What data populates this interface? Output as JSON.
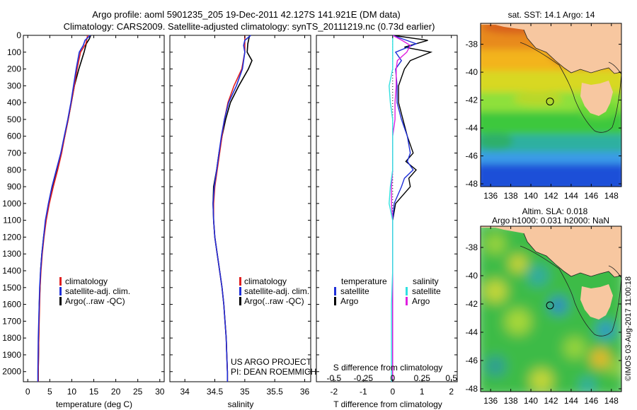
{
  "header": {
    "line1": "Argo profile: aoml 5901235_205 19-Dec-2011 42.127S 141.921E (DM data)",
    "line2": "Climatology: CARS2009. Satellite-adjusted climatology: synTS_20111219.nc (0.73d earlier)"
  },
  "colors": {
    "climatology": "#e02020",
    "satellite": "#1f2fd8",
    "argo": "#000000",
    "cyan": "#30e0e0",
    "magenta": "#e020e0",
    "land": "#f7c7a0"
  },
  "depth_ticks": [
    0,
    100,
    200,
    300,
    400,
    500,
    600,
    700,
    800,
    900,
    1000,
    1100,
    1200,
    1300,
    1400,
    1500,
    1600,
    1700,
    1800,
    1900,
    2000
  ],
  "temp_panel": {
    "xlabel": "temperature (deg C)",
    "xlim": [
      -1,
      31
    ],
    "xticks": [
      0,
      5,
      10,
      15,
      20,
      25,
      30
    ],
    "legend": [
      "climatology",
      "satellite-adj. clim.",
      "Argo(..raw -QC)"
    ],
    "series": {
      "climatology": {
        "depth": [
          0,
          50,
          100,
          200,
          300,
          400,
          500,
          600,
          700,
          800,
          900,
          1000,
          1100,
          1200,
          1300,
          1400,
          1500,
          1600,
          1800,
          2000,
          2060
        ],
        "values": [
          13.6,
          13.2,
          12.0,
          11.2,
          10.6,
          9.9,
          9.2,
          8.4,
          7.7,
          6.8,
          5.8,
          4.9,
          4.2,
          3.7,
          3.3,
          3.0,
          2.8,
          2.7,
          2.5,
          2.4,
          2.4
        ]
      },
      "satellite": {
        "depth": [
          0,
          30,
          60,
          100,
          200,
          300,
          400,
          500,
          600,
          700,
          800,
          900,
          1000,
          1100,
          1200,
          1300,
          1400,
          1500,
          1600,
          1800,
          2000,
          2060
        ],
        "values": [
          14.2,
          13.0,
          12.6,
          11.7,
          11.0,
          10.4,
          9.8,
          9.1,
          8.3,
          7.5,
          6.5,
          5.5,
          4.7,
          4.0,
          3.6,
          3.2,
          2.9,
          2.7,
          2.6,
          2.4,
          2.3,
          2.3
        ]
      },
      "argo": {
        "depth": [
          0,
          20,
          50,
          100,
          150,
          200,
          300,
          400,
          500,
          600,
          700,
          800,
          900,
          1000,
          1100,
          1200,
          1300,
          1400,
          1500,
          1600,
          1800,
          2000,
          2060
        ],
        "values": [
          14.3,
          14.0,
          13.3,
          12.8,
          12.2,
          11.6,
          10.6,
          9.9,
          9.2,
          8.4,
          7.6,
          6.7,
          5.7,
          4.8,
          4.1,
          3.6,
          3.2,
          2.9,
          2.8,
          2.6,
          2.5,
          2.4,
          2.4
        ]
      }
    }
  },
  "sal_panel": {
    "xlabel": "salinity",
    "xlim": [
      33.75,
      36.1
    ],
    "xticks": [
      34,
      34.5,
      35,
      35.5,
      36
    ],
    "xticklabels": [
      "34",
      "34.5",
      "35",
      "35.5",
      "36"
    ],
    "legend": [
      "climatology",
      "satellite-adj. clim.",
      "Argo(..raw -QC)"
    ],
    "project": "US ARGO PROJECT",
    "pi": "PI: DEAN ROEMMICH",
    "series": {
      "climatology": {
        "depth": [
          0,
          50,
          100,
          200,
          300,
          400,
          500,
          600,
          700,
          800,
          900,
          1000,
          1100,
          1200,
          1300,
          1400,
          1500,
          1600,
          1700,
          1800,
          1900,
          2000,
          2060
        ],
        "values": [
          35.0,
          35.0,
          35.0,
          34.95,
          34.82,
          34.72,
          34.66,
          34.62,
          34.58,
          34.54,
          34.5,
          34.48,
          34.48,
          34.5,
          34.54,
          34.58,
          34.62,
          34.65,
          34.67,
          34.69,
          34.7,
          34.71,
          34.71
        ]
      },
      "satellite": {
        "depth": [
          0,
          30,
          60,
          100,
          200,
          300,
          400,
          500,
          600,
          700,
          800,
          900,
          1000,
          1100,
          1200,
          1300,
          1400,
          1500,
          1600,
          1700,
          1800,
          1900,
          2000,
          2060
        ],
        "values": [
          35.1,
          35.0,
          34.98,
          35.0,
          34.96,
          34.86,
          34.73,
          34.66,
          34.61,
          34.57,
          34.53,
          34.49,
          34.47,
          34.48,
          34.5,
          34.54,
          34.58,
          34.62,
          34.65,
          34.67,
          34.69,
          34.7,
          34.71,
          34.71
        ]
      },
      "argo": {
        "depth": [
          0,
          50,
          100,
          150,
          200,
          300,
          400,
          500,
          600,
          700,
          800,
          900,
          1000,
          1100,
          1200,
          1300,
          1400,
          1500,
          1600,
          1700,
          1800,
          1900,
          2000,
          2060
        ],
        "values": [
          35.08,
          35.05,
          35.04,
          35.12,
          35.06,
          34.9,
          34.76,
          34.68,
          34.62,
          34.57,
          34.53,
          34.48,
          34.47,
          34.48,
          34.5,
          34.54,
          34.58,
          34.62,
          34.65,
          34.67,
          34.69,
          34.7,
          34.71,
          34.71
        ]
      }
    }
  },
  "diff_panel": {
    "xlabel": "T difference from climatology",
    "xlim": [
      -2.6,
      2.2
    ],
    "xticks": [
      -2,
      -1,
      0,
      1,
      2
    ],
    "s_title": "S difference from climatology",
    "s_ticks": [
      -0.5,
      -0.25,
      0,
      0.25,
      0.5
    ],
    "s_ticklabels": [
      "-0.5",
      "-0.25",
      "0",
      "0.25",
      "0.5"
    ],
    "s_scale": 4,
    "legend_temperature": {
      "title": "temperature",
      "items": [
        "satellite",
        "Argo"
      ]
    },
    "legend_salinity": {
      "title": "salinity",
      "items": [
        "satellite",
        "Argo"
      ]
    },
    "series": {
      "t_satellite": {
        "depth": [
          0,
          50,
          100,
          150,
          200,
          300,
          400,
          500,
          600,
          700,
          750,
          800,
          850,
          900,
          1000,
          1100,
          1200,
          1400,
          1600,
          1800,
          2000,
          2060
        ],
        "values": [
          0.0,
          0.8,
          0.1,
          0.3,
          0.1,
          0.15,
          0.15,
          0.3,
          0.5,
          0.6,
          0.5,
          0.7,
          0.4,
          0.3,
          0.05,
          0.0,
          0.0,
          0.0,
          0.0,
          0.0,
          0.0,
          0.0
        ]
      },
      "t_argo": {
        "depth": [
          0,
          30,
          70,
          100,
          150,
          200,
          300,
          400,
          500,
          600,
          700,
          750,
          800,
          850,
          900,
          1000,
          1100,
          1200,
          1400,
          1600,
          1800,
          2000,
          2060
        ],
        "values": [
          0.0,
          1.2,
          0.4,
          1.3,
          0.6,
          0.4,
          0.2,
          0.2,
          0.35,
          0.5,
          0.7,
          0.45,
          0.8,
          0.55,
          0.6,
          0.1,
          0.0,
          0.0,
          0.0,
          0.0,
          0.0,
          0.0,
          0.0
        ]
      },
      "s_satellite": {
        "depth": [
          0,
          100,
          200,
          300,
          400,
          500,
          600,
          700,
          800,
          900,
          1000,
          1100,
          1200,
          1400,
          1600,
          1800,
          2000,
          2060
        ],
        "values": [
          0.0,
          0.0,
          0.0,
          -0.03,
          -0.02,
          0.0,
          0.0,
          0.0,
          0.0,
          -0.02,
          -0.03,
          0.0,
          0.0,
          0.0,
          -0.01,
          -0.01,
          -0.01,
          -0.01
        ]
      },
      "s_argo": {
        "depth": [
          0,
          30,
          60,
          100,
          150,
          200,
          300,
          400,
          500,
          600,
          700,
          800,
          900,
          1000,
          1100,
          1200,
          1400,
          1600,
          1800,
          2000,
          2060
        ],
        "values": [
          0.0,
          0.08,
          0.15,
          0.12,
          0.04,
          0.03,
          0.03,
          0.02,
          0.02,
          0.0,
          0.0,
          0.0,
          -0.01,
          -0.01,
          0.0,
          0.0,
          0.0,
          0.0,
          0.0,
          0.0,
          0.0
        ]
      }
    }
  },
  "sst_map": {
    "title": "sat. SST: 14.1  Argo: 14",
    "xticks": [
      136,
      138,
      140,
      142,
      144,
      146,
      148
    ],
    "yticks": [
      -38,
      -40,
      -42,
      -44,
      -46,
      -48
    ],
    "profile_lon": 141.9,
    "profile_lat": -42.1
  },
  "sla_map": {
    "title1": "Altim. SLA: 0.018",
    "title2": "Argo h1000: 0.031 h2000: NaN",
    "xticks": [
      136,
      138,
      140,
      142,
      144,
      146,
      148
    ],
    "yticks": [
      -38,
      -40,
      -42,
      -44,
      -46,
      -48
    ],
    "profile_lon": 141.9,
    "profile_lat": -42.1
  },
  "credit": "©IMOS 03-Aug-2017 11:00:18"
}
